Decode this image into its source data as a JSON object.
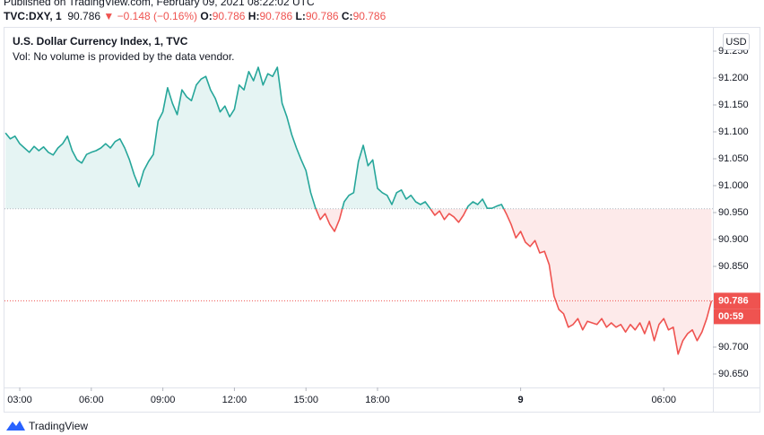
{
  "chart_data": {
    "type": "line",
    "published": "Published on TradingView.com, February 09, 2021 08:22:02 UTC",
    "symbol": "TVC:DXY, 1",
    "last": 90.786,
    "direction_symbol": "▼",
    "change": {
      "value": -0.148,
      "label": "−0.148"
    },
    "change_percent": {
      "value": -0.16,
      "label": "(−0.16%)"
    },
    "ohlc": [
      {
        "name": "O:",
        "value": 90.786
      },
      {
        "name": "H:",
        "value": 90.786
      },
      {
        "name": "L:",
        "value": 90.786
      },
      {
        "name": "C:",
        "value": 90.786
      }
    ],
    "title": "U.S. Dollar Currency Index, 1, TVC",
    "subtitle": "Vol: No volume is provided by the data vendor.",
    "currency": "USD",
    "countdown": "00:59",
    "brand": "TradingView",
    "baseline": 90.957,
    "color_above": "#26a69a",
    "color_below": "#ef5350",
    "xlim": [
      2.36,
      32.06
    ],
    "ylim": [
      90.625,
      91.295
    ],
    "xticks": [
      {
        "value": 3,
        "label": "03:00"
      },
      {
        "value": 6,
        "label": "06:00"
      },
      {
        "value": 9,
        "label": "09:00"
      },
      {
        "value": 12,
        "label": "12:00"
      },
      {
        "value": 15,
        "label": "15:00"
      },
      {
        "value": 18,
        "label": "18:00"
      },
      {
        "value": 24,
        "label": "9"
      },
      {
        "value": 30,
        "label": "06:00"
      }
    ],
    "yticks": [
      {
        "value": 91.25,
        "label": "91.250"
      },
      {
        "value": 91.2,
        "label": "91.200"
      },
      {
        "value": 91.15,
        "label": "91.150"
      },
      {
        "value": 91.1,
        "label": "91.100"
      },
      {
        "value": 91.05,
        "label": "91.050"
      },
      {
        "value": 91.0,
        "label": "91.000"
      },
      {
        "value": 90.95,
        "label": "90.950"
      },
      {
        "value": 90.9,
        "label": "90.900"
      },
      {
        "value": 90.85,
        "label": "90.850"
      },
      {
        "value": 90.7,
        "label": "90.700"
      },
      {
        "value": 90.65,
        "label": "90.650"
      }
    ],
    "x": [
      2.4,
      2.6,
      2.8,
      3,
      3.2,
      3.4,
      3.6,
      3.8,
      4,
      4.2,
      4.4,
      4.6,
      4.8,
      5,
      5.2,
      5.4,
      5.6,
      5.8,
      6,
      6.2,
      6.4,
      6.6,
      6.8,
      7,
      7.2,
      7.4,
      7.6,
      7.8,
      8,
      8.2,
      8.4,
      8.6,
      8.8,
      9,
      9.2,
      9.4,
      9.6,
      9.8,
      10,
      10.2,
      10.4,
      10.6,
      10.8,
      11,
      11.2,
      11.4,
      11.6,
      11.8,
      12,
      12.2,
      12.4,
      12.6,
      12.8,
      13,
      13.2,
      13.4,
      13.6,
      13.8,
      14,
      14.2,
      14.4,
      14.6,
      14.8,
      15,
      15.2,
      15.4,
      15.6,
      15.8,
      16,
      16.2,
      16.4,
      16.6,
      16.8,
      17,
      17.2,
      17.4,
      17.6,
      17.8,
      18,
      18.2,
      18.4,
      18.6,
      18.8,
      19,
      19.2,
      19.4,
      19.6,
      19.8,
      20,
      20.2,
      20.4,
      20.6,
      20.8,
      21,
      21.2,
      21.4,
      21.6,
      21.8,
      22,
      22.2,
      22.4,
      22.6,
      22.8,
      23,
      23.2,
      23.4,
      23.6,
      23.8,
      24,
      24.2,
      24.4,
      24.6,
      24.8,
      25,
      25.2,
      25.4,
      25.6,
      25.8,
      26,
      26.2,
      26.4,
      26.6,
      26.8,
      27,
      27.2,
      27.4,
      27.6,
      27.8,
      28,
      28.2,
      28.4,
      28.6,
      28.8,
      29,
      29.2,
      29.4,
      29.6,
      29.8,
      30,
      30.2,
      30.4,
      30.6,
      30.8,
      31,
      31.2,
      31.4,
      31.6,
      31.8,
      32
    ],
    "values": [
      91.098,
      91.087,
      91.092,
      91.078,
      91.07,
      91.062,
      91.073,
      91.065,
      91.072,
      91.062,
      91.057,
      91.07,
      91.078,
      91.092,
      91.065,
      91.048,
      91.042,
      91.058,
      91.062,
      91.065,
      91.07,
      91.078,
      91.07,
      91.082,
      91.087,
      91.07,
      91.048,
      91.02,
      90.998,
      91.028,
      91.045,
      91.058,
      91.12,
      91.137,
      91.182,
      91.153,
      91.132,
      91.178,
      91.165,
      91.158,
      91.187,
      91.198,
      91.203,
      91.178,
      91.162,
      91.137,
      91.148,
      91.128,
      91.142,
      91.187,
      91.178,
      91.212,
      91.195,
      91.22,
      91.187,
      91.208,
      91.203,
      91.22,
      91.153,
      91.128,
      91.095,
      91.07,
      91.048,
      91.028,
      90.987,
      90.958,
      90.937,
      90.948,
      90.928,
      90.915,
      90.937,
      90.97,
      90.982,
      90.987,
      91.045,
      91.075,
      91.037,
      91.048,
      90.995,
      90.987,
      90.982,
      90.965,
      90.987,
      90.992,
      90.975,
      90.982,
      90.97,
      90.965,
      90.97,
      90.958,
      90.945,
      90.953,
      90.937,
      90.948,
      90.942,
      90.932,
      90.945,
      90.962,
      90.97,
      90.965,
      90.975,
      90.958,
      90.958,
      90.962,
      90.965,
      90.948,
      90.928,
      90.903,
      90.915,
      90.895,
      90.887,
      90.898,
      90.875,
      90.878,
      90.853,
      90.795,
      90.77,
      90.762,
      90.737,
      90.742,
      90.753,
      90.732,
      90.748,
      90.745,
      90.742,
      90.753,
      90.737,
      90.745,
      90.737,
      90.742,
      90.728,
      90.742,
      90.732,
      90.745,
      90.725,
      90.748,
      90.712,
      90.742,
      90.753,
      90.732,
      90.737,
      90.687,
      90.712,
      90.725,
      90.732,
      90.712,
      90.728,
      90.753,
      90.786
    ]
  }
}
